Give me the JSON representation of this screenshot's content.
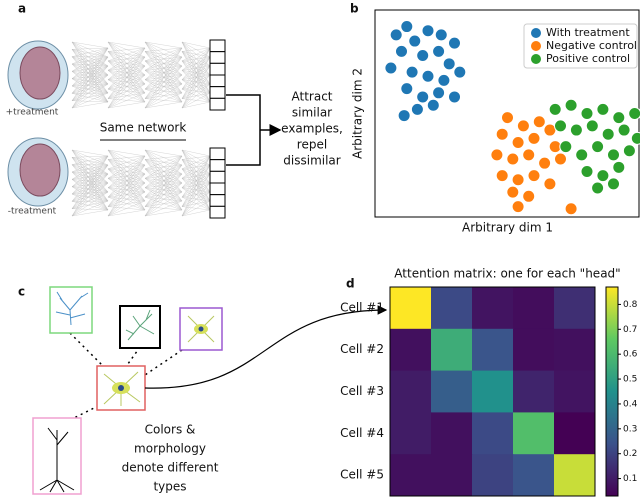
{
  "panel_labels": [
    "a",
    "b",
    "c",
    "d"
  ],
  "diagram_a": {
    "top_label": "+treatment",
    "bottom_label": "-treatment",
    "network_label": "Same network",
    "objective_lines": [
      "Attract",
      "similar",
      "examples,",
      "repel",
      "dissimilar"
    ]
  },
  "diagram_c": {
    "caption_lines": [
      "Colors &",
      "morphology",
      "denote different",
      "types"
    ]
  },
  "chart_data": [
    {
      "type": "scatter",
      "xlabel": "Arbitrary dim 1",
      "ylabel": "Arbitrary dim 2",
      "xlim": [
        0,
        100
      ],
      "ylim": [
        0,
        100
      ],
      "legend": "upper right",
      "series": [
        {
          "name": "With treatment",
          "color": "#1f77b4",
          "x": [
            8,
            12,
            15,
            20,
            25,
            30,
            10,
            18,
            24,
            28,
            6,
            14,
            20,
            26,
            32,
            12,
            18,
            24,
            30,
            16,
            22,
            11
          ],
          "y": [
            88,
            92,
            85,
            90,
            88,
            84,
            80,
            78,
            80,
            74,
            72,
            70,
            68,
            66,
            70,
            62,
            58,
            60,
            58,
            52,
            54,
            49
          ]
        },
        {
          "name": "Negative control",
          "color": "#ff7f0e",
          "x": [
            50,
            56,
            62,
            66,
            48,
            54,
            60,
            68,
            46,
            52,
            58,
            64,
            70,
            48,
            54,
            60,
            66,
            52,
            58,
            54,
            74
          ],
          "y": [
            48,
            44,
            46,
            42,
            40,
            36,
            38,
            34,
            30,
            28,
            30,
            26,
            28,
            20,
            18,
            20,
            16,
            12,
            10,
            5,
            4
          ]
        },
        {
          "name": "Positive control",
          "color": "#2ca02c",
          "x": [
            68,
            74,
            80,
            86,
            92,
            98,
            70,
            76,
            82,
            88,
            94,
            99,
            72,
            78,
            84,
            90,
            96,
            80,
            86,
            92,
            84,
            90
          ],
          "y": [
            52,
            54,
            50,
            52,
            48,
            50,
            44,
            42,
            44,
            40,
            42,
            38,
            34,
            30,
            34,
            30,
            32,
            22,
            20,
            24,
            14,
            16
          ]
        }
      ]
    },
    {
      "type": "heatmap",
      "title": "Attention matrix: one for each \"head\"",
      "rows": [
        "Cell #1",
        "Cell #2",
        "Cell #3",
        "Cell #4",
        "Cell #5"
      ],
      "values": [
        [
          0.87,
          0.22,
          0.08,
          0.06,
          0.15
        ],
        [
          0.07,
          0.55,
          0.25,
          0.06,
          0.07
        ],
        [
          0.1,
          0.28,
          0.45,
          0.12,
          0.08
        ],
        [
          0.1,
          0.07,
          0.22,
          0.62,
          0.03
        ],
        [
          0.07,
          0.07,
          0.2,
          0.25,
          0.8
        ]
      ],
      "colormap": "viridis",
      "clim": [
        0.03,
        0.87
      ],
      "cticks": [
        0.1,
        0.2,
        0.3,
        0.4,
        0.5,
        0.6,
        0.7,
        0.8
      ]
    }
  ]
}
